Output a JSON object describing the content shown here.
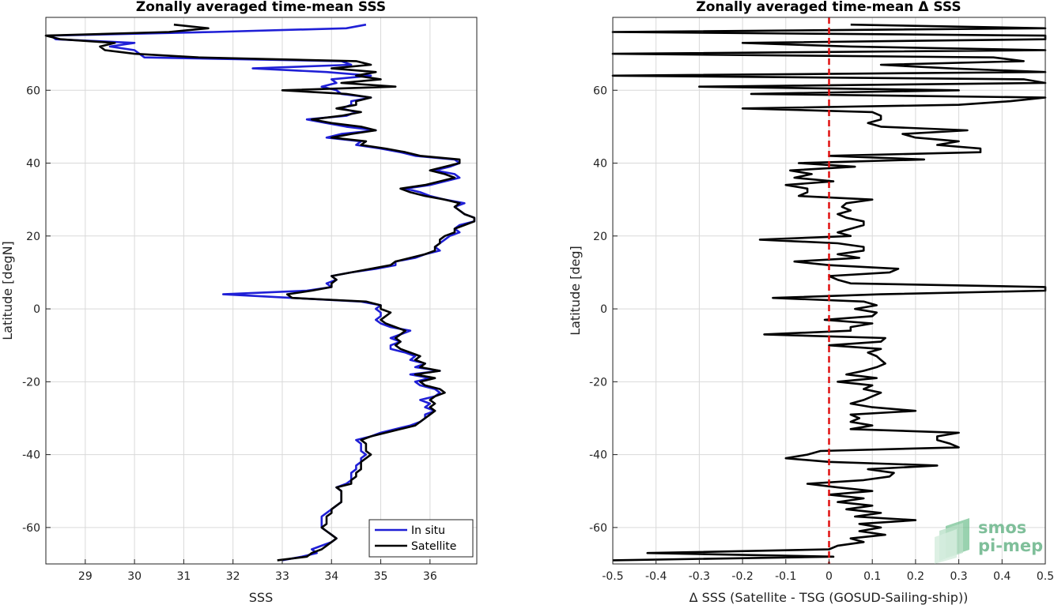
{
  "chart_data": [
    {
      "type": "line",
      "title": "Zonally averaged time-mean SSS",
      "xlabel": "SSS",
      "ylabel": "Latitude [degN]",
      "xlim": [
        28.2,
        36.95
      ],
      "ylim": [
        -70,
        80
      ],
      "xticks": [
        29,
        30,
        31,
        32,
        33,
        34,
        35,
        36
      ],
      "yticks": [
        -60,
        -40,
        -20,
        0,
        20,
        40,
        60
      ],
      "grid": true,
      "legend": "bottom-right",
      "series": [
        {
          "name": "In situ",
          "color": "#1f1fd6",
          "lat": [
            -69,
            -68,
            -67,
            -66,
            -65,
            -64,
            -63,
            -62,
            -61,
            -60,
            -59,
            -58,
            -57,
            -56,
            -55,
            -54,
            -53,
            -52,
            -51,
            -50,
            -49,
            -48,
            -47,
            -46,
            -45,
            -44,
            -43,
            -42,
            -41,
            -40,
            -39,
            -38,
            -37,
            -36,
            -35,
            -34,
            -33,
            -32,
            -31,
            -30,
            -29,
            -28,
            -27,
            -26,
            -25,
            -24,
            -23,
            -22,
            -21,
            -20,
            -19,
            -18,
            -17,
            -16,
            -15,
            -14,
            -13,
            -12,
            -11,
            -10,
            -9,
            -8,
            -7,
            -6,
            -5,
            -4,
            -3,
            -2,
            -1,
            0,
            1,
            2,
            3,
            4,
            5,
            6,
            7,
            8,
            9,
            10,
            11,
            12,
            13,
            14,
            15,
            16,
            17,
            18,
            19,
            20,
            21,
            22,
            23,
            24,
            25,
            26,
            27,
            28,
            29,
            30,
            31,
            32,
            33,
            34,
            35,
            36,
            37,
            38,
            39,
            40,
            41,
            42,
            43,
            44,
            45,
            46,
            47,
            48,
            49,
            50,
            51,
            52,
            53,
            54,
            55,
            56,
            57,
            58,
            59,
            60,
            61,
            62,
            63,
            64,
            65,
            66,
            67,
            68,
            69,
            70,
            71,
            72,
            73,
            74,
            75,
            76,
            77,
            78
          ],
          "values": [
            33.0,
            33.4,
            33.7,
            33.6,
            33.8,
            34.0,
            34.1,
            34.0,
            33.9,
            33.8,
            33.8,
            33.8,
            33.8,
            33.9,
            34.0,
            34.1,
            34.2,
            34.2,
            34.2,
            34.2,
            34.1,
            34.3,
            34.4,
            34.4,
            34.4,
            34.5,
            34.5,
            34.6,
            34.6,
            34.7,
            34.6,
            34.6,
            34.6,
            34.5,
            34.8,
            35.0,
            35.3,
            35.6,
            35.8,
            35.9,
            35.9,
            36.1,
            35.9,
            36.0,
            35.8,
            36.1,
            36.2,
            36.1,
            35.8,
            35.7,
            36.0,
            35.6,
            36.2,
            35.7,
            35.9,
            35.6,
            35.7,
            35.5,
            35.2,
            35.2,
            35.4,
            35.2,
            35.4,
            35.6,
            35.2,
            35.0,
            34.9,
            35.0,
            35.0,
            34.9,
            35.0,
            34.6,
            33.2,
            31.8,
            33.5,
            34.0,
            33.9,
            34.1,
            34.0,
            34.4,
            34.9,
            35.3,
            35.3,
            35.7,
            35.9,
            36.2,
            36.1,
            36.2,
            36.3,
            36.4,
            36.6,
            36.5,
            36.6,
            36.9,
            36.9,
            36.7,
            36.6,
            36.5,
            36.7,
            36.3,
            36.0,
            35.8,
            35.5,
            36.0,
            36.3,
            36.6,
            36.5,
            36.1,
            36.4,
            36.6,
            36.5,
            35.7,
            35.4,
            35.0,
            34.5,
            34.6,
            33.9,
            34.2,
            34.9,
            34.3,
            33.9,
            33.5,
            34.3,
            34.5,
            34.2,
            34.4,
            34.4,
            34.8,
            34.2,
            34.1,
            33.8,
            34.1,
            34.0,
            34.8,
            33.9,
            32.4,
            34.4,
            34.2,
            30.2,
            30.1,
            30.0,
            29.5,
            30.0,
            28.4,
            28.3,
            31.6,
            34.3,
            34.7
          ]
        },
        {
          "name": "Satellite",
          "color": "#000000",
          "lat": [
            -69,
            -68,
            -67,
            -66,
            -65,
            -64,
            -63,
            -62,
            -61,
            -60,
            -59,
            -58,
            -57,
            -56,
            -55,
            -54,
            -53,
            -52,
            -51,
            -50,
            -49,
            -48,
            -47,
            -46,
            -45,
            -44,
            -43,
            -42,
            -41,
            -40,
            -39,
            -38,
            -37,
            -36,
            -35,
            -34,
            -33,
            -32,
            -31,
            -30,
            -29,
            -28,
            -27,
            -26,
            -25,
            -24,
            -23,
            -22,
            -21,
            -20,
            -19,
            -18,
            -17,
            -16,
            -15,
            -14,
            -13,
            -12,
            -11,
            -10,
            -9,
            -8,
            -7,
            -6,
            -5,
            -4,
            -3,
            -2,
            -1,
            0,
            1,
            2,
            3,
            4,
            5,
            6,
            7,
            8,
            9,
            10,
            11,
            12,
            13,
            14,
            15,
            16,
            17,
            18,
            19,
            20,
            21,
            22,
            23,
            24,
            25,
            26,
            27,
            28,
            29,
            30,
            31,
            32,
            33,
            34,
            35,
            36,
            37,
            38,
            39,
            40,
            41,
            42,
            43,
            44,
            45,
            46,
            47,
            48,
            49,
            50,
            51,
            52,
            53,
            54,
            55,
            56,
            57,
            58,
            59,
            60,
            61,
            62,
            63,
            64,
            65,
            66,
            67,
            68,
            69,
            70,
            71,
            72,
            73,
            74,
            75,
            76,
            77,
            78
          ],
          "values": [
            32.9,
            33.5,
            33.6,
            33.8,
            33.9,
            34.0,
            34.1,
            34.0,
            33.9,
            33.8,
            33.9,
            33.9,
            33.9,
            34.0,
            34.0,
            34.1,
            34.2,
            34.2,
            34.2,
            34.2,
            34.1,
            34.4,
            34.4,
            34.5,
            34.5,
            34.6,
            34.6,
            34.6,
            34.7,
            34.8,
            34.7,
            34.7,
            34.7,
            34.6,
            34.8,
            35.1,
            35.4,
            35.7,
            35.8,
            35.9,
            36.0,
            36.1,
            36.0,
            36.1,
            36.0,
            36.1,
            36.3,
            36.2,
            35.9,
            35.8,
            36.1,
            35.7,
            36.2,
            35.8,
            35.9,
            35.7,
            35.8,
            35.6,
            35.4,
            35.3,
            35.4,
            35.3,
            35.4,
            35.5,
            35.3,
            35.1,
            35.0,
            35.1,
            35.2,
            35.0,
            35.0,
            34.7,
            33.2,
            33.1,
            33.6,
            34.0,
            34.0,
            34.1,
            34.0,
            34.4,
            34.8,
            35.2,
            35.3,
            35.6,
            35.9,
            36.1,
            36.1,
            36.2,
            36.2,
            36.3,
            36.5,
            36.5,
            36.7,
            36.9,
            36.9,
            36.7,
            36.6,
            36.5,
            36.6,
            36.3,
            35.9,
            35.6,
            35.4,
            35.9,
            36.2,
            36.5,
            36.3,
            36.0,
            36.3,
            36.6,
            36.6,
            35.8,
            35.5,
            35.1,
            34.6,
            34.7,
            34.0,
            34.4,
            34.9,
            34.6,
            34.0,
            33.6,
            34.2,
            34.6,
            34.1,
            34.5,
            34.5,
            34.8,
            34.3,
            33.0,
            35.3,
            34.2,
            35.0,
            34.5,
            34.9,
            34.0,
            34.8,
            34.5,
            31.3,
            30.0,
            29.4,
            29.3,
            29.6,
            28.5,
            28.2,
            30.7,
            31.5,
            30.8,
            34.5
          ]
        }
      ]
    },
    {
      "type": "line",
      "title": "Zonally averaged time-mean Δ SSS",
      "xlabel": "Δ SSS (Satellite - TSG (GOSUD-Sailing-ship))",
      "ylabel": "Latitude [deg]",
      "xlim": [
        -0.5,
        0.5
      ],
      "ylim": [
        -70,
        80
      ],
      "xticks": [
        -0.5,
        -0.4,
        -0.3,
        -0.2,
        -0.1,
        0,
        0.1,
        0.2,
        0.3,
        0.4,
        0.5
      ],
      "yticks": [
        -60,
        -40,
        -20,
        0,
        20,
        40,
        60
      ],
      "grid": true,
      "zero_line_color": "#e01010",
      "series": [
        {
          "color": "#000000",
          "lat": [
            -69,
            -68,
            -67,
            -66,
            -65,
            -64,
            -63,
            -62,
            -61,
            -60,
            -59,
            -58,
            -57,
            -56,
            -55,
            -54,
            -53,
            -52,
            -51,
            -50,
            -49,
            -48,
            -47,
            -46,
            -45,
            -44,
            -43,
            -42,
            -41,
            -40,
            -39,
            -38,
            -37,
            -36,
            -35,
            -34,
            -33,
            -32,
            -31,
            -30,
            -29,
            -28,
            -27,
            -26,
            -25,
            -24,
            -23,
            -22,
            -21,
            -20,
            -19,
            -18,
            -17,
            -16,
            -15,
            -14,
            -13,
            -12,
            -11,
            -10,
            -9,
            -8,
            -7,
            -6,
            -5,
            -4,
            -3,
            -2,
            -1,
            0,
            1,
            2,
            3,
            4,
            5,
            6,
            7,
            8,
            9,
            10,
            11,
            12,
            13,
            14,
            15,
            16,
            17,
            18,
            19,
            20,
            21,
            22,
            23,
            24,
            25,
            26,
            27,
            28,
            29,
            30,
            31,
            32,
            33,
            34,
            35,
            36,
            37,
            38,
            39,
            40,
            41,
            42,
            43,
            44,
            45,
            46,
            47,
            48,
            49,
            50,
            51,
            52,
            53,
            54,
            55,
            56,
            57,
            58,
            59,
            60,
            61,
            62,
            63,
            64,
            65,
            66,
            67,
            68,
            69,
            70,
            71,
            72,
            73,
            74,
            75,
            76,
            77,
            78
          ],
          "values": [
            -0.5,
            0.01,
            -0.42,
            0.0,
            0.02,
            0.08,
            0.05,
            0.13,
            0.07,
            0.12,
            0.07,
            0.2,
            0.06,
            0.12,
            0.04,
            0.1,
            0.02,
            0.08,
            0.0,
            0.1,
            0.02,
            -0.05,
            0.08,
            0.14,
            0.15,
            0.09,
            0.25,
            0.0,
            -0.1,
            -0.05,
            -0.02,
            0.3,
            0.28,
            0.25,
            0.25,
            0.3,
            0.05,
            0.1,
            0.05,
            0.07,
            0.05,
            0.2,
            0.1,
            0.05,
            0.08,
            0.1,
            0.12,
            0.08,
            0.1,
            0.02,
            0.11,
            0.04,
            0.08,
            0.11,
            0.13,
            0.12,
            0.11,
            0.09,
            0.12,
            0.0,
            0.12,
            0.13,
            -0.15,
            0.05,
            0.05,
            0.1,
            -0.01,
            0.1,
            0.11,
            0.06,
            0.11,
            0.08,
            -0.13,
            0.12,
            0.5,
            0.5,
            0.05,
            0.02,
            0.0,
            0.14,
            0.16,
            0.0,
            -0.08,
            0.07,
            0.02,
            0.08,
            0.08,
            0.02,
            -0.16,
            0.05,
            0.02,
            0.05,
            0.08,
            0.08,
            0.04,
            0.02,
            0.05,
            0.03,
            0.04,
            0.1,
            -0.07,
            -0.05,
            -0.05,
            -0.1,
            0.01,
            -0.08,
            -0.04,
            -0.09,
            0.06,
            -0.07,
            0.22,
            0.0,
            0.35,
            0.35,
            0.25,
            0.3,
            0.2,
            0.17,
            0.32,
            0.12,
            0.09,
            0.12,
            0.12,
            0.1,
            -0.2,
            0.3,
            0.42,
            0.5,
            -0.18,
            0.3,
            -0.3,
            0.5,
            0.45,
            -0.5,
            0.5,
            0.28,
            0.12,
            0.45,
            0.38,
            -0.5,
            0.5,
            0.05,
            -0.2,
            0.5,
            0.5,
            -0.5,
            0.5,
            0.05
          ]
        }
      ]
    }
  ],
  "legend": {
    "items": [
      "In situ",
      "Satellite"
    ]
  },
  "logo": {
    "line1": "smos",
    "line2": "pi-mep"
  }
}
